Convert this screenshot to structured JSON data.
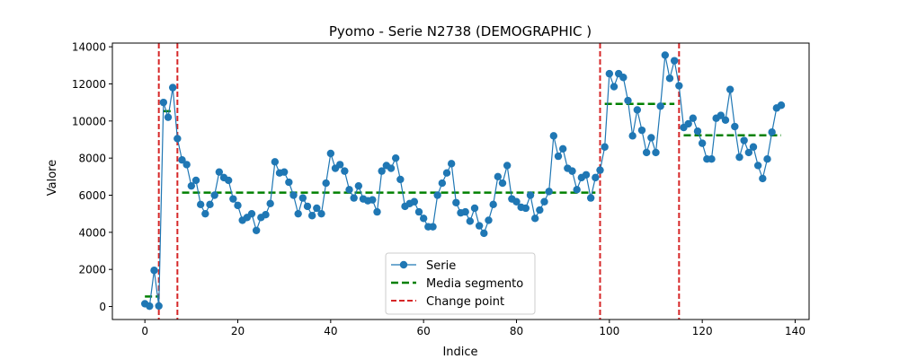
{
  "chart_data": {
    "type": "line",
    "title": "Pyomo - Serie N2738 (DEMOGRAPHIC )",
    "xlabel": "Indice",
    "ylabel": "Valore",
    "xlim": [
      -7,
      143
    ],
    "ylim": [
      -700,
      14200
    ],
    "xticks": [
      0,
      20,
      40,
      60,
      80,
      100,
      120,
      140
    ],
    "yticks": [
      0,
      2000,
      4000,
      6000,
      8000,
      10000,
      12000,
      14000
    ],
    "grid": false,
    "legend_position": "bottom-center",
    "colors": {
      "series": "#1f77b4",
      "segment_mean": "#008000",
      "change_point": "#d62728"
    },
    "series": [
      {
        "name": "Serie",
        "style": "line-marker",
        "x": [
          0,
          1,
          2,
          3,
          4,
          5,
          6,
          7,
          8,
          9,
          10,
          11,
          12,
          13,
          14,
          15,
          16,
          17,
          18,
          19,
          20,
          21,
          22,
          23,
          24,
          25,
          26,
          27,
          28,
          29,
          30,
          31,
          32,
          33,
          34,
          35,
          36,
          37,
          38,
          39,
          40,
          41,
          42,
          43,
          44,
          45,
          46,
          47,
          48,
          49,
          50,
          51,
          52,
          53,
          54,
          55,
          56,
          57,
          58,
          59,
          60,
          61,
          62,
          63,
          64,
          65,
          66,
          67,
          68,
          69,
          70,
          71,
          72,
          73,
          74,
          75,
          76,
          77,
          78,
          79,
          80,
          81,
          82,
          83,
          84,
          85,
          86,
          87,
          88,
          89,
          90,
          91,
          92,
          93,
          94,
          95,
          96,
          97,
          98,
          99,
          100,
          101,
          102,
          103,
          104,
          105,
          106,
          107,
          108,
          109,
          110,
          111,
          112,
          113,
          114,
          115,
          116,
          117,
          118,
          119,
          120,
          121,
          122,
          123,
          124,
          125,
          126,
          127,
          128,
          129,
          130,
          131,
          132,
          133,
          134,
          135,
          136,
          137
        ],
        "values": [
          150,
          20,
          1950,
          30,
          11000,
          10200,
          11800,
          9050,
          7900,
          7650,
          6500,
          6800,
          5500,
          5000,
          5500,
          6000,
          7250,
          6950,
          6800,
          5800,
          5450,
          4650,
          4800,
          5000,
          4100,
          4800,
          4950,
          5550,
          7800,
          7200,
          7250,
          6700,
          6000,
          5000,
          5850,
          5400,
          4900,
          5300,
          5000,
          6650,
          8250,
          7450,
          7650,
          7300,
          6300,
          5850,
          6500,
          5800,
          5700,
          5750,
          5100,
          7300,
          7600,
          7450,
          8000,
          6850,
          5400,
          5550,
          5650,
          5100,
          4750,
          4300,
          4300,
          6000,
          6650,
          7200,
          7700,
          5600,
          5050,
          5100,
          4600,
          5300,
          4350,
          3950,
          4650,
          5500,
          7000,
          6650,
          7600,
          5800,
          5650,
          5350,
          5300,
          6000,
          4750,
          5200,
          5650,
          6200,
          9200,
          8100,
          8500,
          7450,
          7300,
          6300,
          6950,
          7100,
          5850,
          6950,
          7350,
          8600,
          12550,
          11850,
          12550,
          12350,
          11100,
          9200,
          10600,
          9500,
          8300,
          9100,
          8300,
          10800,
          13550,
          12300,
          13250,
          11900,
          9650,
          9850,
          10150,
          9450,
          8800,
          7950,
          7950,
          10150,
          10300,
          10050,
          11700,
          9700,
          8050,
          8950,
          8300,
          8600,
          7600,
          6900,
          7950,
          9400,
          10700,
          10850
        ]
      },
      {
        "name": "Media segmento",
        "style": "dashed",
        "segments": [
          {
            "x_start": 0,
            "x_end": 3,
            "value": 540
          },
          {
            "x_start": 4,
            "x_end": 6,
            "value": 10530
          },
          {
            "x_start": 8,
            "x_end": 97,
            "value": 6140
          },
          {
            "x_start": 99,
            "x_end": 114,
            "value": 10920
          },
          {
            "x_start": 116,
            "x_end": 137,
            "value": 9230
          }
        ]
      },
      {
        "name": "Change point",
        "style": "vertical-dashed",
        "x": [
          3,
          7,
          98,
          115
        ]
      }
    ]
  }
}
